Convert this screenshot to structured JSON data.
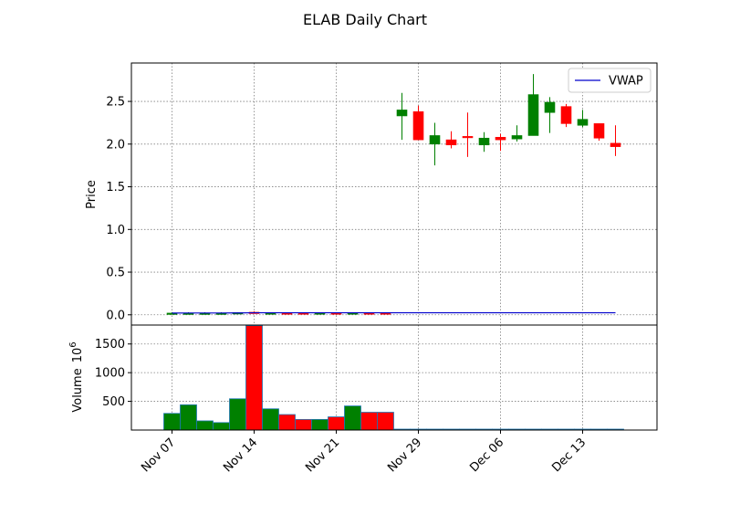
{
  "chart_data": {
    "type": "candlestick",
    "title": "ELAB Daily Chart",
    "price_panel": {
      "ylabel": "Price",
      "ylim": [
        -0.12,
        2.95
      ],
      "yticks": [
        0.0,
        0.5,
        1.0,
        1.5,
        2.0,
        2.5
      ],
      "ytick_labels": [
        "0.0",
        "0.5",
        "1.0",
        "1.5",
        "2.0",
        "2.5"
      ],
      "grid": true,
      "legend": {
        "placement": "top-right",
        "entries": [
          {
            "name": "VWAP",
            "color": "#0000cc"
          }
        ]
      }
    },
    "volume_panel": {
      "ylabel": "Volume",
      "ylabel_exponent": "10",
      "ylabel_exponent_power": "6",
      "ylim": [
        0,
        1830
      ],
      "yticks": [
        500,
        1000,
        1500
      ],
      "ytick_labels": [
        "500",
        "1000",
        "1500"
      ],
      "grid": true
    },
    "x_tick_labels": [
      "Nov 07",
      "Nov 14",
      "Nov 21",
      "Nov 29",
      "Dec 06",
      "Dec 13"
    ],
    "x_tick_index": [
      0,
      5,
      10,
      15,
      20,
      25
    ],
    "colors": {
      "up": "#008000",
      "down": "#ff0000",
      "vwap": "#0000cc"
    },
    "candles": [
      {
        "date": "Nov 07",
        "open": 0.02,
        "high": 0.03,
        "low": 0.01,
        "close": 0.02,
        "volume": 290
      },
      {
        "date": "Nov 08",
        "open": 0.02,
        "high": 0.03,
        "low": 0.01,
        "close": 0.02,
        "volume": 440
      },
      {
        "date": "Nov 09",
        "open": 0.02,
        "high": 0.03,
        "low": 0.01,
        "close": 0.02,
        "volume": 160
      },
      {
        "date": "Nov 10",
        "open": 0.02,
        "high": 0.03,
        "low": 0.01,
        "close": 0.02,
        "volume": 130
      },
      {
        "date": "Nov 11",
        "open": 0.02,
        "high": 0.03,
        "low": 0.01,
        "close": 0.025,
        "volume": 545
      },
      {
        "date": "Nov 14",
        "open": 0.03,
        "high": 0.04,
        "low": 0.02,
        "close": 0.025,
        "volume": 1820
      },
      {
        "date": "Nov 15",
        "open": 0.02,
        "high": 0.03,
        "low": 0.01,
        "close": 0.022,
        "volume": 370
      },
      {
        "date": "Nov 16",
        "open": 0.022,
        "high": 0.03,
        "low": 0.01,
        "close": 0.02,
        "volume": 270
      },
      {
        "date": "Nov 17",
        "open": 0.022,
        "high": 0.03,
        "low": 0.01,
        "close": 0.02,
        "volume": 185
      },
      {
        "date": "Nov 18",
        "open": 0.02,
        "high": 0.03,
        "low": 0.01,
        "close": 0.022,
        "volume": 185
      },
      {
        "date": "Nov 21",
        "open": 0.022,
        "high": 0.03,
        "low": 0.01,
        "close": 0.02,
        "volume": 230
      },
      {
        "date": "Nov 22",
        "open": 0.02,
        "high": 0.03,
        "low": 0.01,
        "close": 0.022,
        "volume": 420
      },
      {
        "date": "Nov 23",
        "open": 0.022,
        "high": 0.03,
        "low": 0.01,
        "close": 0.02,
        "volume": 310
      },
      {
        "date": "Nov 25",
        "open": 0.022,
        "high": 0.03,
        "low": 0.01,
        "close": 0.02,
        "volume": 310
      },
      {
        "date": "Nov 28",
        "open": 2.33,
        "high": 2.6,
        "low": 2.05,
        "close": 2.4,
        "volume": 0
      },
      {
        "date": "Nov 29",
        "open": 2.38,
        "high": 2.45,
        "low": 2.05,
        "close": 2.05,
        "volume": 0
      },
      {
        "date": "Nov 30",
        "open": 2.0,
        "high": 2.25,
        "low": 1.75,
        "close": 2.1,
        "volume": 0
      },
      {
        "date": "Dec 01",
        "open": 2.05,
        "high": 2.15,
        "low": 1.95,
        "close": 1.99,
        "volume": 0
      },
      {
        "date": "Dec 02",
        "open": 2.09,
        "high": 2.37,
        "low": 1.85,
        "close": 2.08,
        "volume": 0
      },
      {
        "date": "Dec 05",
        "open": 1.99,
        "high": 2.14,
        "low": 1.91,
        "close": 2.07,
        "volume": 0
      },
      {
        "date": "Dec 06",
        "open": 2.08,
        "high": 2.12,
        "low": 1.92,
        "close": 2.05,
        "volume": 0
      },
      {
        "date": "Dec 07",
        "open": 2.06,
        "high": 2.22,
        "low": 2.03,
        "close": 2.1,
        "volume": 0
      },
      {
        "date": "Dec 08",
        "open": 2.1,
        "high": 2.82,
        "low": 2.1,
        "close": 2.58,
        "volume": 0
      },
      {
        "date": "Dec 09",
        "open": 2.37,
        "high": 2.55,
        "low": 2.13,
        "close": 2.49,
        "volume": 0
      },
      {
        "date": "Dec 12",
        "open": 2.44,
        "high": 2.47,
        "low": 2.2,
        "close": 2.24,
        "volume": 0
      },
      {
        "date": "Dec 13",
        "open": 2.22,
        "high": 2.4,
        "low": 2.2,
        "close": 2.29,
        "volume": 0
      },
      {
        "date": "Dec 14",
        "open": 2.24,
        "high": 2.24,
        "low": 2.04,
        "close": 2.07,
        "volume": 0
      },
      {
        "date": "Dec 15",
        "open": 2.01,
        "high": 2.22,
        "low": 1.86,
        "close": 1.97,
        "volume": 0
      }
    ],
    "vwap": [
      0.02,
      0.021,
      0.021,
      0.021,
      0.022,
      0.024,
      0.024,
      0.024,
      0.024,
      0.024,
      0.024,
      0.024,
      0.024,
      0.024,
      0.024,
      0.024,
      0.024,
      0.024,
      0.024,
      0.024,
      0.024,
      0.024,
      0.024,
      0.024,
      0.024,
      0.024,
      0.024,
      0.024
    ]
  }
}
